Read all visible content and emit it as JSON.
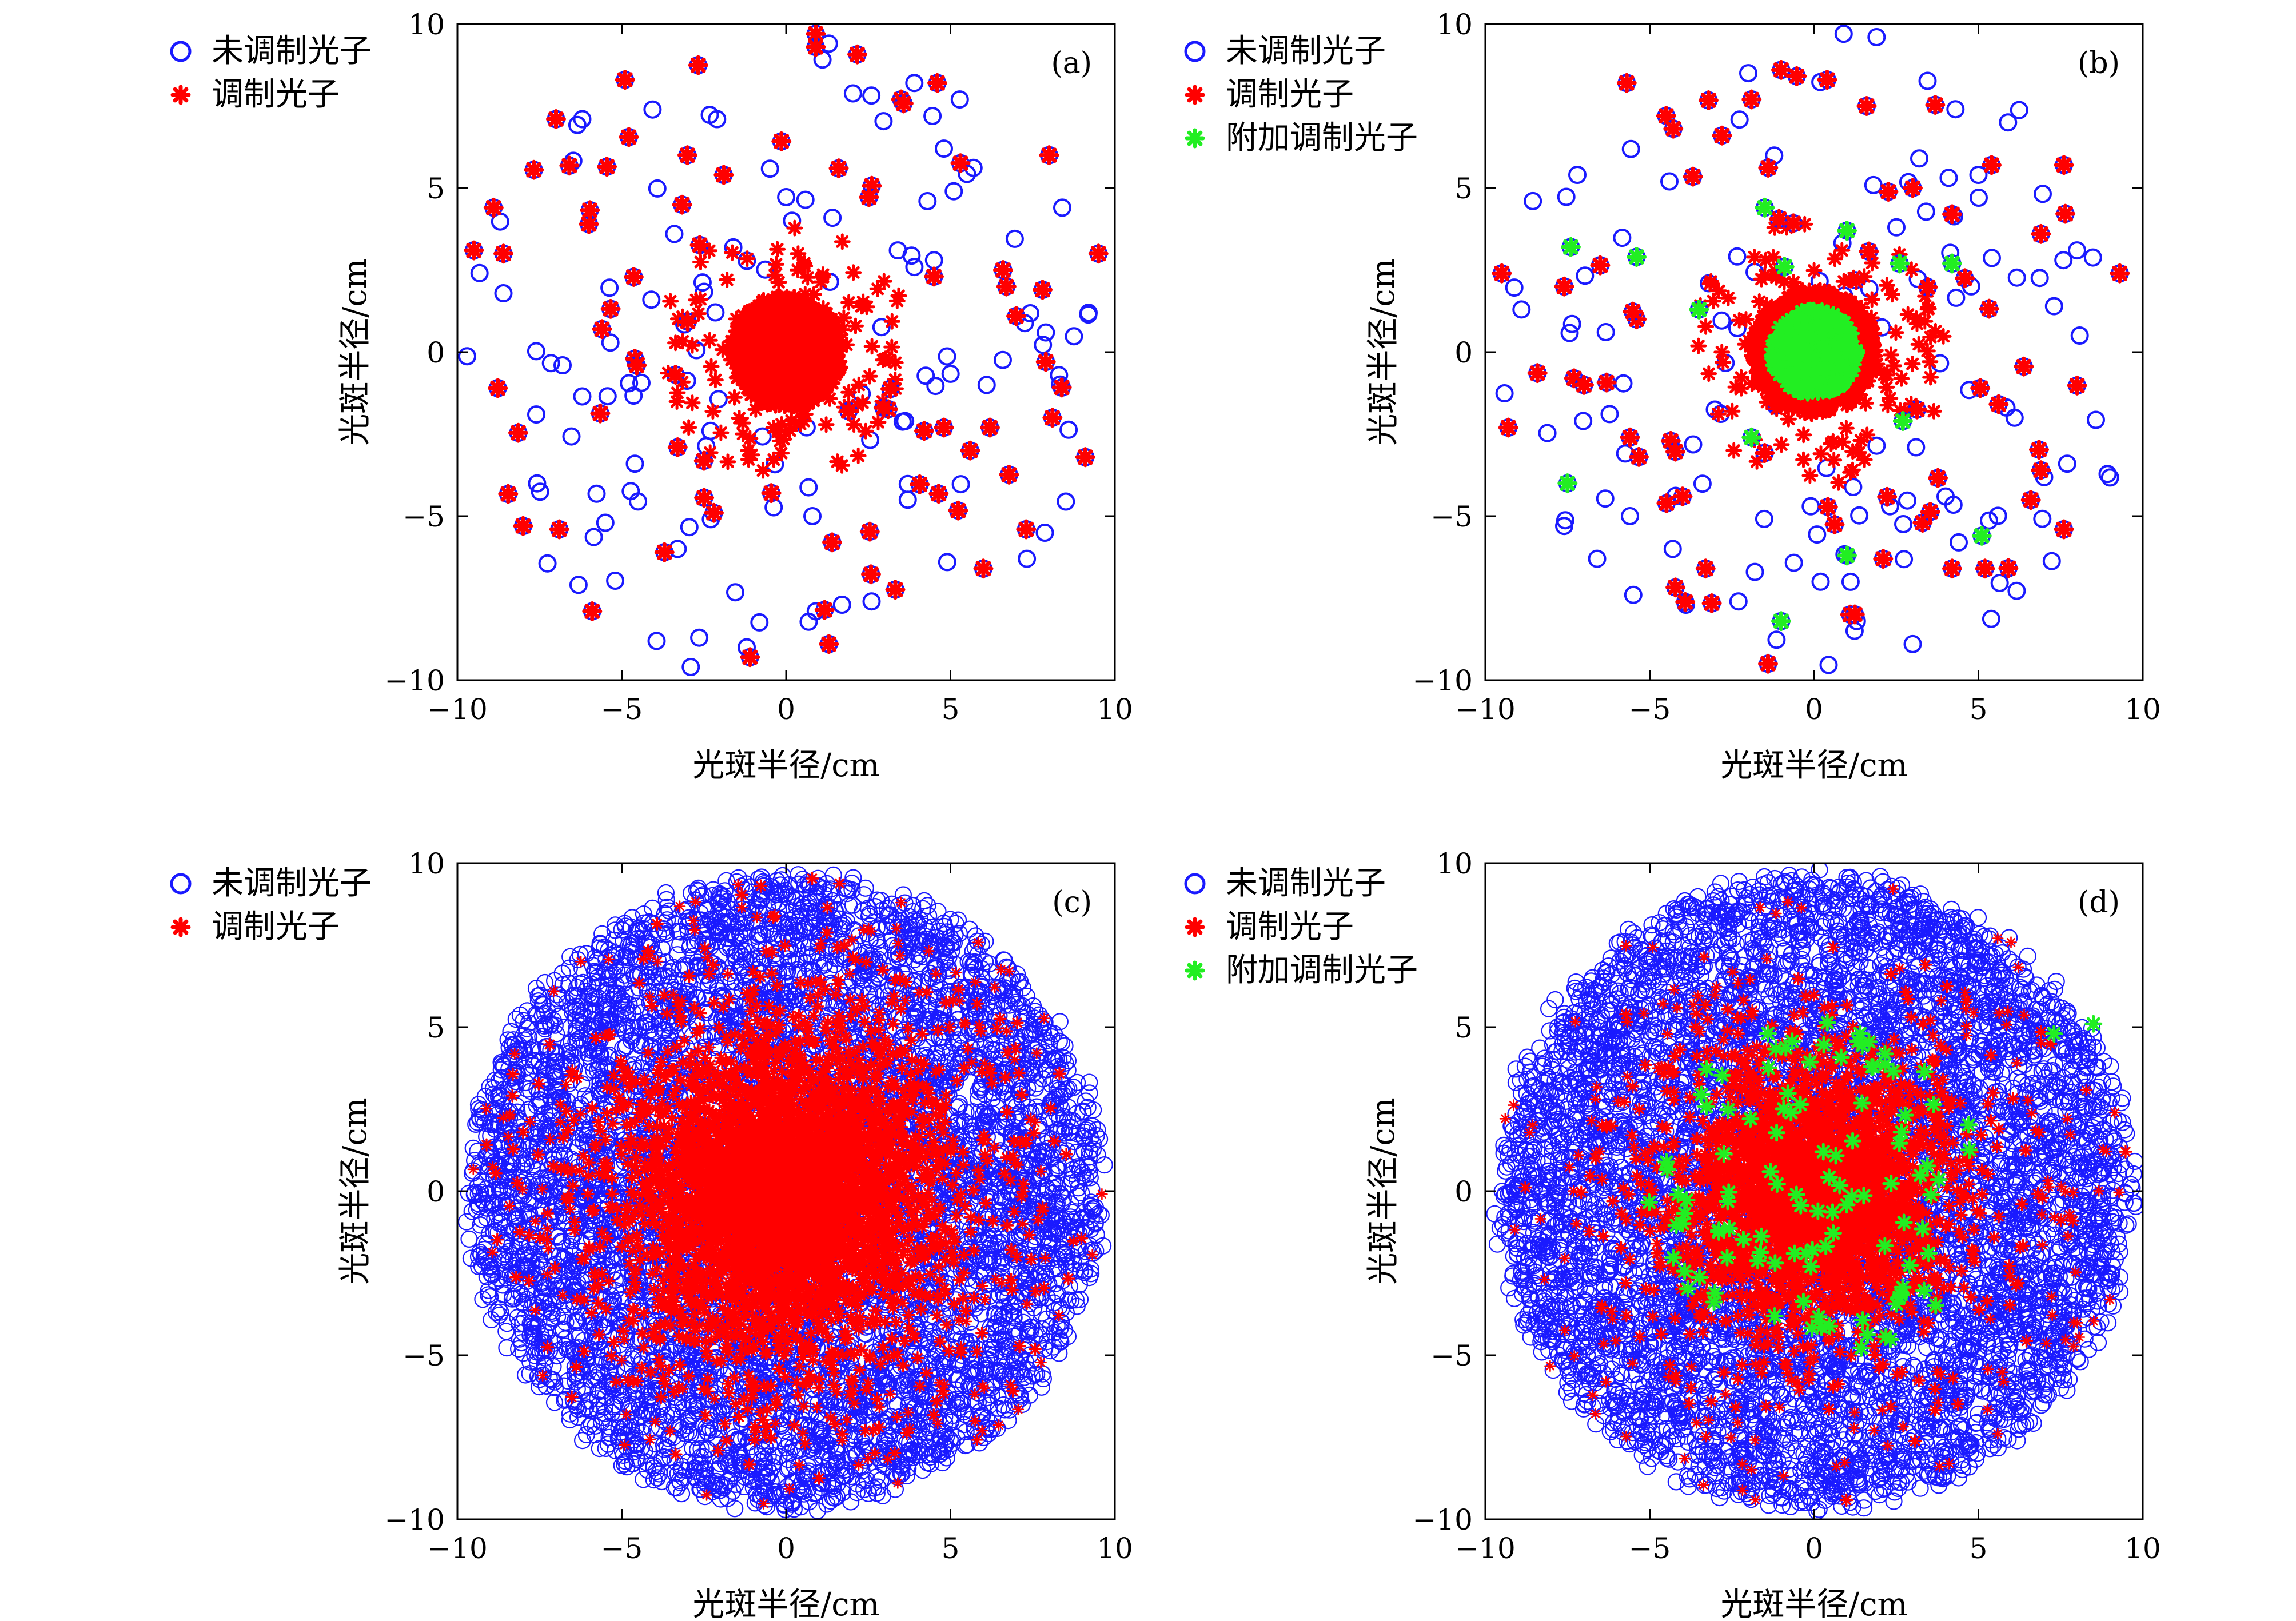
{
  "colors": {
    "unmodulated": "#1a1aff",
    "modulated": "#ff0000",
    "additional": "#22ee22",
    "axis": "#000000"
  },
  "chart_data": [
    {
      "panel": "(a)",
      "type": "scatter",
      "xlabel": "光斑半径/cm",
      "ylabel": "光斑半径/cm",
      "xlim": [
        -10,
        10
      ],
      "ylim": [
        -10,
        10
      ],
      "xticks": [
        -10,
        -5,
        0,
        5,
        10
      ],
      "yticks": [
        -10,
        -5,
        0,
        5,
        10
      ],
      "xtick_labels": [
        "−10",
        "−5",
        "0",
        "5",
        "10"
      ],
      "ytick_labels": [
        "−10",
        "−5",
        "0",
        "5",
        "10"
      ],
      "legend": [
        "未调制光子",
        "调制光子"
      ],
      "legend_position": "outside-top-left",
      "series": [
        {
          "name": "未调制光子",
          "marker": "o",
          "color": "#1a1aff",
          "distribution": "sparse ring, radius 0-10",
          "x": [
            3.9,
            4.8,
            8.4,
            1.3,
            -2.1,
            -3.4,
            3.4,
            4.3,
            7.9,
            8.3,
            9.2,
            -2.3,
            -4.1,
            -6.2,
            -6.8,
            -7.6,
            1.7,
            2.6,
            4.9,
            -1.2,
            3.7,
            6.1,
            -3.3,
            -5.5,
            -4.6,
            0.9,
            0.8,
            -2.9,
            4.5,
            5.1
          ],
          "y": [
            8.2,
            6.2,
            4.4,
            9.4,
            7.1,
            3.6,
            3.1,
            4.6,
            0.6,
            -0.7,
            1.2,
            -2.4,
            1.6,
            7.1,
            -0.4,
            -1.9,
            -7.7,
            -7.6,
            -6.4,
            -9.0,
            -4.5,
            -1.0,
            -6.0,
            -5.2,
            -3.4,
            -7.9,
            -5.0,
            -9.6,
            2.8,
            4.9
          ]
        },
        {
          "name": "调制光子",
          "marker": "*",
          "color": "#ff0000",
          "distribution": "dense core radius ~1.7 plus sparse outer points",
          "x": [
            0.9,
            0.9,
            -4.9,
            -3.0,
            -1.9,
            1.6,
            4.6,
            3.5,
            6.6,
            8.0,
            9.5,
            9.1,
            -8.9,
            -9.5,
            -8.6,
            -7.0,
            -6.0,
            -5.6,
            -4.6,
            -3.3,
            -2.2,
            1.9,
            4.2,
            6.2,
            7.3,
            8.1,
            7.8,
            9.1,
            -5.9,
            -6.9,
            -8.0,
            -3.7,
            -1.1,
            1.4,
            1.3,
            4.8,
            5.6,
            6.0,
            6.7,
            7.0
          ],
          "y": [
            9.7,
            9.3,
            8.3,
            6.0,
            5.4,
            5.6,
            8.2,
            7.7,
            2.5,
            6.0,
            3.0,
            -3.2,
            4.4,
            3.1,
            3.0,
            7.1,
            3.9,
            0.7,
            -0.2,
            -2.9,
            -4.9,
            -1.8,
            -2.4,
            -2.3,
            -5.4,
            -2.0,
            1.9,
            -3.2,
            -7.9,
            -5.4,
            -5.3,
            -6.1,
            -9.3,
            -5.8,
            -8.9,
            -2.3,
            -3.0,
            -6.6,
            2.0,
            1.1
          ]
        }
      ]
    },
    {
      "panel": "(b)",
      "type": "scatter",
      "xlabel": "光斑半径/cm",
      "ylabel": "光斑半径/cm",
      "xlim": [
        -10,
        10
      ],
      "ylim": [
        -10,
        10
      ],
      "xticks": [
        -10,
        -5,
        0,
        5,
        10
      ],
      "yticks": [
        -10,
        -5,
        0,
        5,
        10
      ],
      "xtick_labels": [
        "−10",
        "−5",
        "0",
        "5",
        "10"
      ],
      "ytick_labels": [
        "−10",
        "−5",
        "0",
        "5",
        "10"
      ],
      "legend": [
        "未调制光子",
        "调制光子",
        "附加调制光子"
      ],
      "legend_position": "outside-top-left",
      "series": [
        {
          "name": "未调制光子",
          "marker": "o",
          "color": "#1a1aff",
          "distribution": "sparse, radius 0-10",
          "x": [
            -2.0,
            0.9,
            1.9,
            3.2,
            4.3,
            5.0,
            5.9,
            7.3,
            8.0,
            -7.2,
            -4.4,
            -3.2,
            3.0,
            4.4,
            -5.5,
            -3.9,
            -1.8,
            0.2,
            1.3,
            3.1,
            4.0,
            -7.6,
            -5.6,
            -4.3,
            -2.3,
            -0.1,
            6.1,
            7.7,
            -8.9,
            -6.6
          ],
          "y": [
            8.5,
            9.7,
            9.6,
            5.9,
            7.4,
            5.4,
            7.0,
            1.4,
            3.1,
            5.4,
            5.2,
            2.1,
            -8.9,
            -5.8,
            -7.4,
            -7.7,
            -6.7,
            -7.0,
            -8.2,
            -2.9,
            -4.4,
            -5.3,
            -5.0,
            -6.0,
            -7.6,
            -4.7,
            -2.0,
            -3.4,
            1.3,
            -6.3
          ]
        },
        {
          "name": "调制光子",
          "marker": "*",
          "color": "#ff0000",
          "distribution": "dense core radius ~1.9 plus sparse outer points",
          "x": [
            -9.5,
            -7.6,
            -5.7,
            -4.5,
            -2.8,
            -1.9,
            -1.0,
            0.4,
            1.6,
            3.0,
            4.2,
            5.4,
            6.9,
            7.6,
            9.3,
            -9.3,
            -7.3,
            -5.6,
            -4.0,
            -3.3,
            -1.4,
            1.1,
            2.1,
            3.3,
            4.2,
            5.2,
            6.9,
            7.6,
            -7.0,
            -5.4
          ],
          "y": [
            2.4,
            2.0,
            8.2,
            7.2,
            6.6,
            7.7,
            8.6,
            8.3,
            7.5,
            5.0,
            4.2,
            5.7,
            3.6,
            5.7,
            2.4,
            -2.3,
            -0.8,
            -2.6,
            -4.4,
            -6.6,
            -9.5,
            -8.0,
            -6.3,
            -5.2,
            -6.6,
            -6.6,
            -3.6,
            -5.4,
            -1.0,
            1.0
          ]
        },
        {
          "name": "附加调制光子",
          "marker": "*",
          "color": "#22ee22",
          "distribution": "dense core radius ~1.3 plus sparse outer points",
          "x": [
            -7.4,
            -5.4,
            -3.5,
            -1.5,
            1.0,
            2.6,
            4.2,
            -7.5,
            -1.9,
            -1.0,
            1.0,
            2.7,
            5.1,
            -0.9
          ],
          "y": [
            3.2,
            2.9,
            1.3,
            4.4,
            3.7,
            2.7,
            2.7,
            -4.0,
            -2.6,
            -8.2,
            -6.2,
            -2.1,
            -5.6,
            2.6
          ]
        }
      ]
    },
    {
      "panel": "(c)",
      "type": "scatter",
      "xlabel": "光斑半径/cm",
      "ylabel": "光斑半径/cm",
      "xlim": [
        -10,
        10
      ],
      "ylim": [
        -10,
        10
      ],
      "xticks": [
        -10,
        -5,
        0,
        5,
        10
      ],
      "yticks": [
        -10,
        -5,
        0,
        5,
        10
      ],
      "xtick_labels": [
        "−10",
        "−5",
        "0",
        "5",
        "10"
      ],
      "ytick_labels": [
        "−10",
        "−5",
        "0",
        "5",
        "10"
      ],
      "legend": [
        "未调制光子",
        "调制光子"
      ],
      "legend_position": "outside-top-left",
      "series": [
        {
          "name": "未调制光子",
          "marker": "o",
          "color": "#1a1aff",
          "distribution": "dense disc, radius 0-10"
        },
        {
          "name": "调制光子",
          "marker": "*",
          "color": "#ff0000",
          "distribution": "very dense core radius ~5, sparse to 9.5"
        }
      ]
    },
    {
      "panel": "(d)",
      "type": "scatter",
      "xlabel": "光斑半径/cm",
      "ylabel": "光斑半径/cm",
      "xlim": [
        -10,
        10
      ],
      "ylim": [
        -10,
        10
      ],
      "xticks": [
        -10,
        -5,
        0,
        5,
        10
      ],
      "yticks": [
        -10,
        -5,
        0,
        5,
        10
      ],
      "xtick_labels": [
        "−10",
        "−5",
        "0",
        "5",
        "10"
      ],
      "ytick_labels": [
        "−10",
        "−5",
        "0",
        "5",
        "10"
      ],
      "legend": [
        "未调制光子",
        "调制光子",
        "附加调制光子"
      ],
      "legend_position": "outside-top-left",
      "series": [
        {
          "name": "未调制光子",
          "marker": "o",
          "color": "#1a1aff",
          "distribution": "dense disc, radius 0-10"
        },
        {
          "name": "调制光子",
          "marker": "*",
          "color": "#ff0000",
          "distribution": "dense core radius ~4, sparse to 9.5"
        },
        {
          "name": "附加调制光子",
          "marker": "*",
          "color": "#22ee22",
          "distribution": "about 110 points, radius 0-5.5, plus outliers near (7.3,4.8),(8.5,5.1)"
        }
      ]
    }
  ]
}
